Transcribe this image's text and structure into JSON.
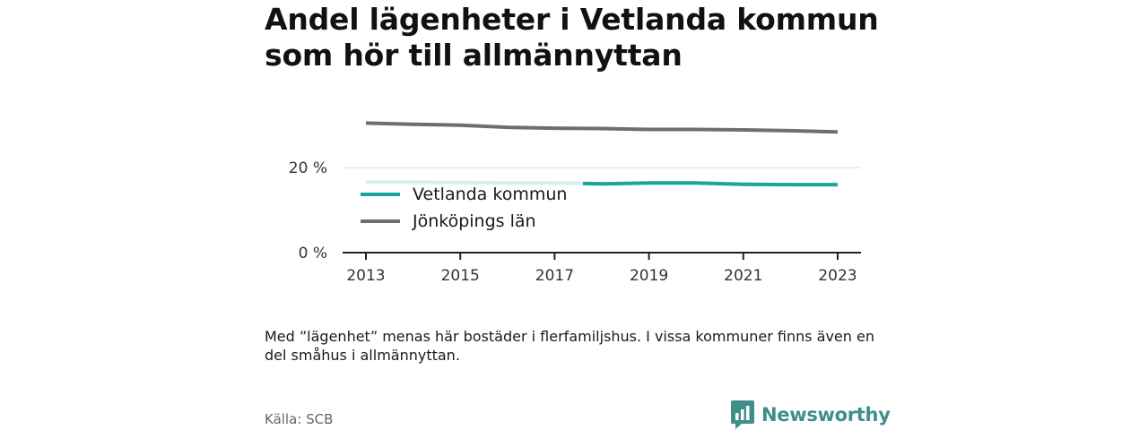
{
  "title": "Andel lägenheter i Vetlanda kommun som hör till allmännyttan",
  "note": "Med ”lägenhet” menas här bostäder i flerfamiljshus. I vissa kommuner finns även en del småhus i allmännyttan.",
  "source": "Källa: SCB",
  "brand": {
    "name": "Newsworthy",
    "icon": "newsworthy-logo-icon",
    "color": "#3f8f89"
  },
  "chart_data": {
    "type": "line",
    "title": "Andel lägenheter i Vetlanda kommun som hör till allmännyttan",
    "xlabel": "",
    "ylabel": "",
    "x": [
      2013,
      2014,
      2015,
      2016,
      2017,
      2018,
      2019,
      2020,
      2021,
      2022,
      2023
    ],
    "x_ticks": [
      2013,
      2015,
      2017,
      2019,
      2021,
      2023
    ],
    "x_tick_labels": [
      "2013",
      "2015",
      "2017",
      "2019",
      "2021",
      "2023"
    ],
    "y_ticks": [
      0,
      20
    ],
    "y_tick_labels": [
      "0 %",
      "20 %"
    ],
    "ylim": [
      0,
      31
    ],
    "grid": true,
    "legend_position": "center-left",
    "series": [
      {
        "name": "Vetlanda kommun",
        "color": "#14a79a",
        "values": [
          16.6,
          16.6,
          16.5,
          16.4,
          16.4,
          16.2,
          16.4,
          16.4,
          16.1,
          16.0,
          16.0
        ]
      },
      {
        "name": "Jönköpings län",
        "color": "#6e6e70",
        "values": [
          30.5,
          30.2,
          30.0,
          29.5,
          29.3,
          29.2,
          29.0,
          29.0,
          28.9,
          28.7,
          28.4
        ]
      }
    ]
  }
}
